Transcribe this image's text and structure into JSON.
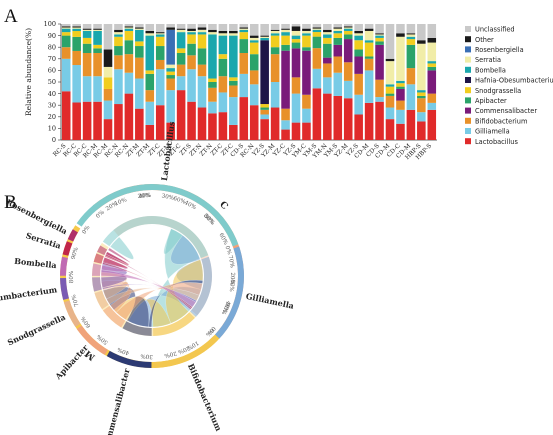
{
  "panels": {
    "a": "A",
    "b": "B"
  },
  "chart_data": [
    {
      "type": "bar",
      "stacked": true,
      "ylabel": "Relative abundance(%)",
      "ylim": [
        0,
        100
      ],
      "yticks": [
        "0",
        "10",
        "20",
        "30",
        "40",
        "50",
        "60",
        "70",
        "80",
        "90",
        "100"
      ],
      "legend_position": "right",
      "categories": [
        "RC-S",
        "RC-C",
        "RC-C",
        "RC-M",
        "RC-M",
        "RC-N",
        "RC-N",
        "ZT-M",
        "ZT-M",
        "ZT-C",
        "ZT-M",
        "ZT-C",
        "ZT-S",
        "ZT-N",
        "ZT-N",
        "ZT-C",
        "ZT-C",
        "CD-S",
        "RC-N",
        "YZ-S",
        "YZ-M",
        "YZ-C",
        "YZ-S",
        "YM-C",
        "YM-S",
        "YM-N",
        "YM-S",
        "YZ-M",
        "YZ-S",
        "CD-M",
        "CD-S",
        "CD-M",
        "CD-C",
        "CD-M",
        "HBP-S",
        "HBP-S"
      ],
      "series": [
        {
          "name": "Unclassified",
          "color": "#c9c9c9",
          "values": [
            2,
            2,
            4,
            4,
            22,
            5,
            2,
            3,
            6,
            7,
            3,
            4,
            4,
            3,
            5,
            6,
            6,
            3,
            10,
            10,
            5,
            4,
            2,
            4,
            3,
            5,
            3,
            2,
            6,
            4,
            8,
            30,
            8,
            8,
            14,
            12
          ]
        },
        {
          "name": "Other",
          "color": "#1a1a1a",
          "values": [
            1,
            1,
            1,
            1,
            15,
            2,
            1,
            1,
            2,
            1,
            2,
            1,
            2,
            2,
            2,
            2,
            2,
            1,
            2,
            1,
            1,
            1,
            4,
            2,
            1,
            2,
            1,
            1,
            2,
            2,
            1,
            2,
            3,
            1,
            3,
            4
          ]
        },
        {
          "name": "Rosenbergiella",
          "color": "#3a6fb5",
          "values": [
            0,
            0,
            0,
            0,
            0,
            0,
            0,
            0,
            0,
            0,
            30,
            0,
            0,
            0,
            0,
            0,
            0,
            0,
            0,
            0,
            0,
            0,
            0,
            0,
            0,
            0,
            0,
            0,
            0,
            0,
            0,
            0,
            0,
            0,
            0,
            0
          ]
        },
        {
          "name": "Serratia",
          "color": "#f1eda8",
          "values": [
            1,
            1,
            1,
            1,
            9,
            2,
            1,
            1,
            2,
            1,
            3,
            2,
            1,
            2,
            2,
            2,
            2,
            1,
            2,
            1,
            2,
            2,
            4,
            2,
            1,
            2,
            2,
            1,
            2,
            8,
            1,
            20,
            38,
            2,
            40,
            16
          ]
        },
        {
          "name": "Bombella",
          "color": "#1aa7ad",
          "values": [
            3,
            2,
            6,
            12,
            0,
            2,
            2,
            10,
            30,
            2,
            3,
            14,
            2,
            2,
            38,
            16,
            36,
            2,
            2,
            2,
            2,
            3,
            3,
            2,
            2,
            3,
            2,
            2,
            4,
            2,
            2,
            2,
            2,
            2,
            2,
            2
          ]
        },
        {
          "name": "Hafnia-Obesumbacterium",
          "color": "#1e1547",
          "values": [
            0,
            0,
            0,
            0,
            0,
            0,
            0,
            0,
            0,
            0,
            0,
            0,
            0,
            0,
            0,
            0,
            0,
            0,
            0,
            55,
            0,
            0,
            0,
            0,
            0,
            0,
            0,
            0,
            0,
            0,
            0,
            0,
            0,
            0,
            0,
            0
          ]
        },
        {
          "name": "Snodgrassella",
          "color": "#f1cd1f",
          "values": [
            3,
            5,
            5,
            3,
            10,
            8,
            8,
            4,
            3,
            8,
            3,
            4,
            8,
            12,
            3,
            4,
            3,
            6,
            10,
            3,
            10,
            8,
            3,
            10,
            4,
            5,
            4,
            3,
            8,
            12,
            3,
            6,
            3,
            5,
            3,
            3
          ]
        },
        {
          "name": "Apibacter",
          "color": "#2ba36a",
          "values": [
            10,
            12,
            8,
            4,
            0,
            8,
            12,
            10,
            14,
            12,
            3,
            10,
            10,
            14,
            5,
            15,
            4,
            12,
            14,
            2,
            6,
            5,
            5,
            3,
            10,
            12,
            6,
            4,
            6,
            2,
            3,
            2,
            2,
            20,
            2,
            3
          ]
        },
        {
          "name": "Commensalibacter",
          "color": "#7a1b7a",
          "values": [
            0,
            0,
            0,
            0,
            0,
            0,
            0,
            0,
            0,
            0,
            0,
            0,
            0,
            0,
            0,
            0,
            0,
            0,
            0,
            0,
            0,
            50,
            25,
            38,
            0,
            5,
            10,
            20,
            15,
            0,
            30,
            0,
            10,
            0,
            0,
            20
          ]
        },
        {
          "name": "Bifidobacterium",
          "color": "#e8912a",
          "values": [
            10,
            12,
            20,
            20,
            10,
            12,
            16,
            18,
            10,
            8,
            10,
            10,
            12,
            10,
            12,
            14,
            10,
            18,
            12,
            4,
            24,
            10,
            14,
            12,
            18,
            12,
            14,
            16,
            18,
            10,
            15,
            10,
            8,
            14,
            12,
            8
          ]
        },
        {
          "name": "Gilliamella",
          "color": "#78cbe6",
          "values": [
            28,
            32,
            22,
            22,
            16,
            30,
            18,
            26,
            20,
            31,
            28,
            12,
            28,
            27,
            10,
            17,
            24,
            20,
            18,
            4,
            22,
            8,
            25,
            12,
            17,
            14,
            20,
            15,
            17,
            28,
            4,
            10,
            12,
            22,
            8,
            6
          ]
        },
        {
          "name": "Lactobacillus",
          "color": "#e02a2a",
          "values": [
            42,
            32,
            33,
            33,
            18,
            31,
            40,
            27,
            13,
            30,
            15,
            43,
            33,
            28,
            23,
            24,
            13,
            37,
            30,
            18,
            28,
            9,
            15,
            15,
            45,
            40,
            38,
            36,
            22,
            32,
            33,
            18,
            14,
            26,
            16,
            26
          ]
        }
      ]
    },
    {
      "type": "chord",
      "groups": [
        {
          "name": "C",
          "percent_ticks": [
            "0%",
            "10%",
            "20%",
            "30%",
            "40%",
            "50%",
            "60%",
            "70%",
            "80%",
            "90%"
          ]
        },
        {
          "name": "M",
          "percent_ticks": [
            "0%",
            "10%",
            "20%",
            "30%",
            "40%",
            "50%",
            "60%",
            "70%",
            "80%",
            "90%"
          ]
        }
      ],
      "genera": [
        {
          "name": "Lactobacillus",
          "color": "#7fcbcb",
          "C": 45,
          "M": 28,
          "ticks": [
            "0%",
            "20%",
            "40%",
            "60%",
            "80%"
          ]
        },
        {
          "name": "Gilliamella",
          "color": "#7aa9d6",
          "C": 20,
          "M": 16,
          "ticks": [
            "0%",
            "20%",
            "40%"
          ]
        },
        {
          "name": "Bifidobacterium",
          "color": "#f3c74f",
          "C": 14,
          "M": 12,
          "ticks": [
            "0%",
            "20%"
          ]
        },
        {
          "name": "Commensalibacter",
          "color": "#2c3a73",
          "C": 2,
          "M": 15,
          "ticks": []
        },
        {
          "name": "Apibacter",
          "color": "#f0a37a",
          "C": 8,
          "M": 6,
          "ticks": []
        },
        {
          "name": "Snodgrassella",
          "color": "#e8b48a",
          "C": 4,
          "M": 6,
          "ticks": []
        },
        {
          "name": "Hafnia-Obesumbacterium",
          "color": "#7b5bb3",
          "C": 1,
          "M": 7,
          "ticks": []
        },
        {
          "name": "Bombella",
          "color": "#c06ab3",
          "C": 4,
          "M": 3,
          "ticks": []
        },
        {
          "name": "Serratia",
          "color": "#c0264a",
          "C": 1,
          "M": 4,
          "ticks": []
        },
        {
          "name": "Rosenbergiella",
          "color": "#b0306a",
          "C": 1,
          "M": 3,
          "ticks": []
        }
      ]
    }
  ]
}
